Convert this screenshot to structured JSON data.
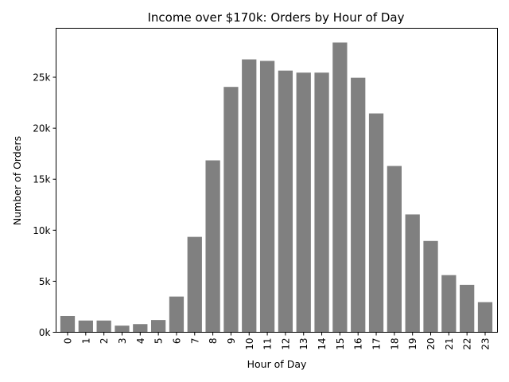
{
  "chart_data": {
    "type": "bar",
    "title": "Income over $170k: Orders by Hour of Day",
    "xlabel": "Hour of Day",
    "ylabel": "Number of Orders",
    "categories": [
      "0",
      "1",
      "2",
      "3",
      "4",
      "5",
      "6",
      "7",
      "8",
      "9",
      "10",
      "11",
      "12",
      "13",
      "14",
      "15",
      "16",
      "17",
      "18",
      "19",
      "20",
      "21",
      "22",
      "23"
    ],
    "values": [
      1600,
      1150,
      1150,
      650,
      800,
      1200,
      3500,
      9350,
      16850,
      24050,
      26750,
      26600,
      25650,
      25450,
      25450,
      28400,
      24950,
      21450,
      16300,
      11550,
      8950,
      5600,
      4650,
      2950
    ],
    "ylim": [
      0,
      29800
    ],
    "yticks": [
      0,
      5000,
      10000,
      15000,
      20000,
      25000
    ],
    "ytick_labels": [
      "0k",
      "5k",
      "10k",
      "15k",
      "20k",
      "25k"
    ],
    "bar_color": "#808080",
    "grid": false,
    "legend": "none"
  }
}
